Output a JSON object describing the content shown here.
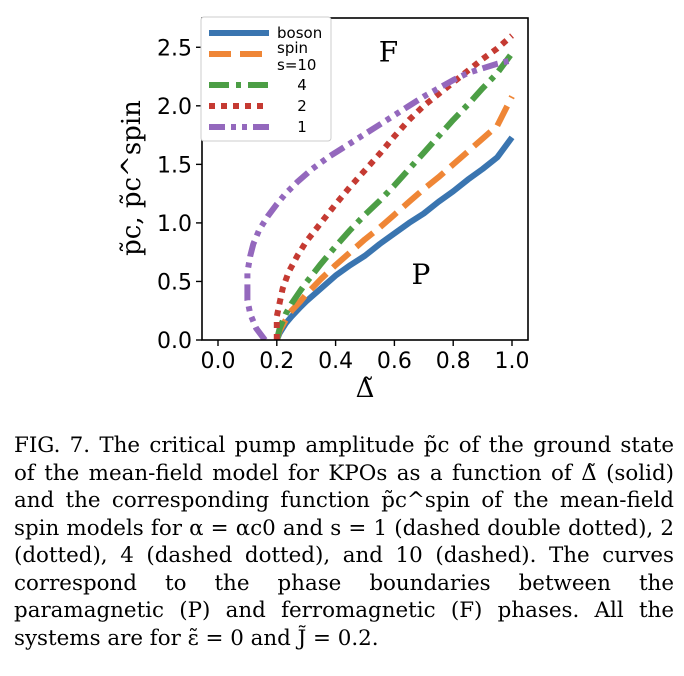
{
  "chart_data": {
    "type": "line",
    "xlabel": "Δ̃",
    "ylabel": "p̃c, p̃c^spin",
    "xlim": [
      0.0,
      1.0
    ],
    "ylim": [
      0.0,
      2.75
    ],
    "xticks": [
      "0.0",
      "0.2",
      "0.4",
      "0.6",
      "0.8",
      "1.0"
    ],
    "yticks": [
      "0.0",
      "0.5",
      "1.0",
      "1.5",
      "2.0",
      "2.5"
    ],
    "legend_position": "top-left",
    "legend_title": "",
    "annotations": [
      {
        "text": "F",
        "x": 0.58,
        "y": 2.38
      },
      {
        "text": "P",
        "x": 0.69,
        "y": 0.48
      }
    ],
    "series": [
      {
        "name": "boson",
        "color": "#3a75b0",
        "style": "solid",
        "x": [
          0.2,
          0.21,
          0.23,
          0.25,
          0.28,
          0.3,
          0.35,
          0.4,
          0.45,
          0.5,
          0.55,
          0.6,
          0.65,
          0.7,
          0.75,
          0.8,
          0.85,
          0.9,
          0.95,
          1.0
        ],
        "y": [
          0.0,
          0.06,
          0.14,
          0.2,
          0.28,
          0.33,
          0.44,
          0.55,
          0.64,
          0.72,
          0.82,
          0.91,
          1.0,
          1.08,
          1.18,
          1.27,
          1.37,
          1.46,
          1.56,
          1.73
        ]
      },
      {
        "name": "spin\ns=10",
        "color": "#ef8636",
        "style": "dashed",
        "x": [
          0.2,
          0.21,
          0.23,
          0.25,
          0.28,
          0.3,
          0.35,
          0.4,
          0.45,
          0.5,
          0.55,
          0.6,
          0.65,
          0.7,
          0.75,
          0.8,
          0.85,
          0.9,
          0.95,
          1.0
        ],
        "y": [
          0.0,
          0.08,
          0.17,
          0.25,
          0.33,
          0.39,
          0.52,
          0.64,
          0.75,
          0.86,
          0.96,
          1.07,
          1.18,
          1.29,
          1.39,
          1.5,
          1.61,
          1.72,
          1.83,
          2.08
        ]
      },
      {
        "name": "4",
        "color": "#4c9e45",
        "style": "dashdot",
        "x": [
          0.2,
          0.21,
          0.23,
          0.25,
          0.28,
          0.3,
          0.35,
          0.4,
          0.45,
          0.5,
          0.55,
          0.6,
          0.65,
          0.7,
          0.75,
          0.8,
          0.85,
          0.9,
          0.95,
          1.0
        ],
        "y": [
          0.0,
          0.1,
          0.22,
          0.31,
          0.42,
          0.49,
          0.65,
          0.8,
          0.94,
          1.07,
          1.19,
          1.32,
          1.46,
          1.6,
          1.74,
          1.88,
          2.01,
          2.15,
          2.28,
          2.45
        ]
      },
      {
        "name": "2",
        "color": "#c53a32",
        "style": "dotted",
        "x": [
          0.2,
          0.2,
          0.2,
          0.21,
          0.22,
          0.24,
          0.27,
          0.3,
          0.35,
          0.4,
          0.45,
          0.5,
          0.55,
          0.6,
          0.65,
          0.7,
          0.75,
          0.8,
          0.85,
          0.9,
          0.95,
          1.0
        ],
        "y": [
          0.0,
          0.1,
          0.2,
          0.32,
          0.44,
          0.58,
          0.72,
          0.84,
          1.0,
          1.16,
          1.31,
          1.45,
          1.59,
          1.74,
          1.88,
          2.0,
          2.1,
          2.2,
          2.3,
          2.4,
          2.49,
          2.6
        ]
      },
      {
        "name": "1",
        "color": "#9468bd",
        "style": "dashdotdot",
        "x": [
          0.16,
          0.13,
          0.11,
          0.1,
          0.1,
          0.1,
          0.11,
          0.12,
          0.14,
          0.17,
          0.2,
          0.23,
          0.27,
          0.32,
          0.38,
          0.45,
          0.5,
          0.55,
          0.6,
          0.65,
          0.7,
          0.75,
          0.8,
          0.85,
          0.9,
          0.95,
          1.0
        ],
        "y": [
          0.0,
          0.1,
          0.22,
          0.34,
          0.46,
          0.58,
          0.72,
          0.82,
          0.94,
          1.06,
          1.16,
          1.25,
          1.35,
          1.46,
          1.57,
          1.68,
          1.76,
          1.84,
          1.92,
          2.0,
          2.08,
          2.15,
          2.22,
          2.28,
          2.32,
          2.36,
          2.39
        ]
      }
    ]
  },
  "caption": "FIG. 7. The critical pump amplitude p̃c of the ground state of the mean-field model for KPOs as a function of Δ̃ (solid) and the corresponding function p̃c^spin of the mean-field spin models for α = αc0 and s = 1 (dashed double dotted), 2 (dotted), 4 (dashed dotted), and 10 (dashed). The curves correspond to the phase boundaries between the paramagnetic (P) and ferromagnetic (F) phases. All the systems are for ε̃ = 0 and J̃ = 0.2."
}
